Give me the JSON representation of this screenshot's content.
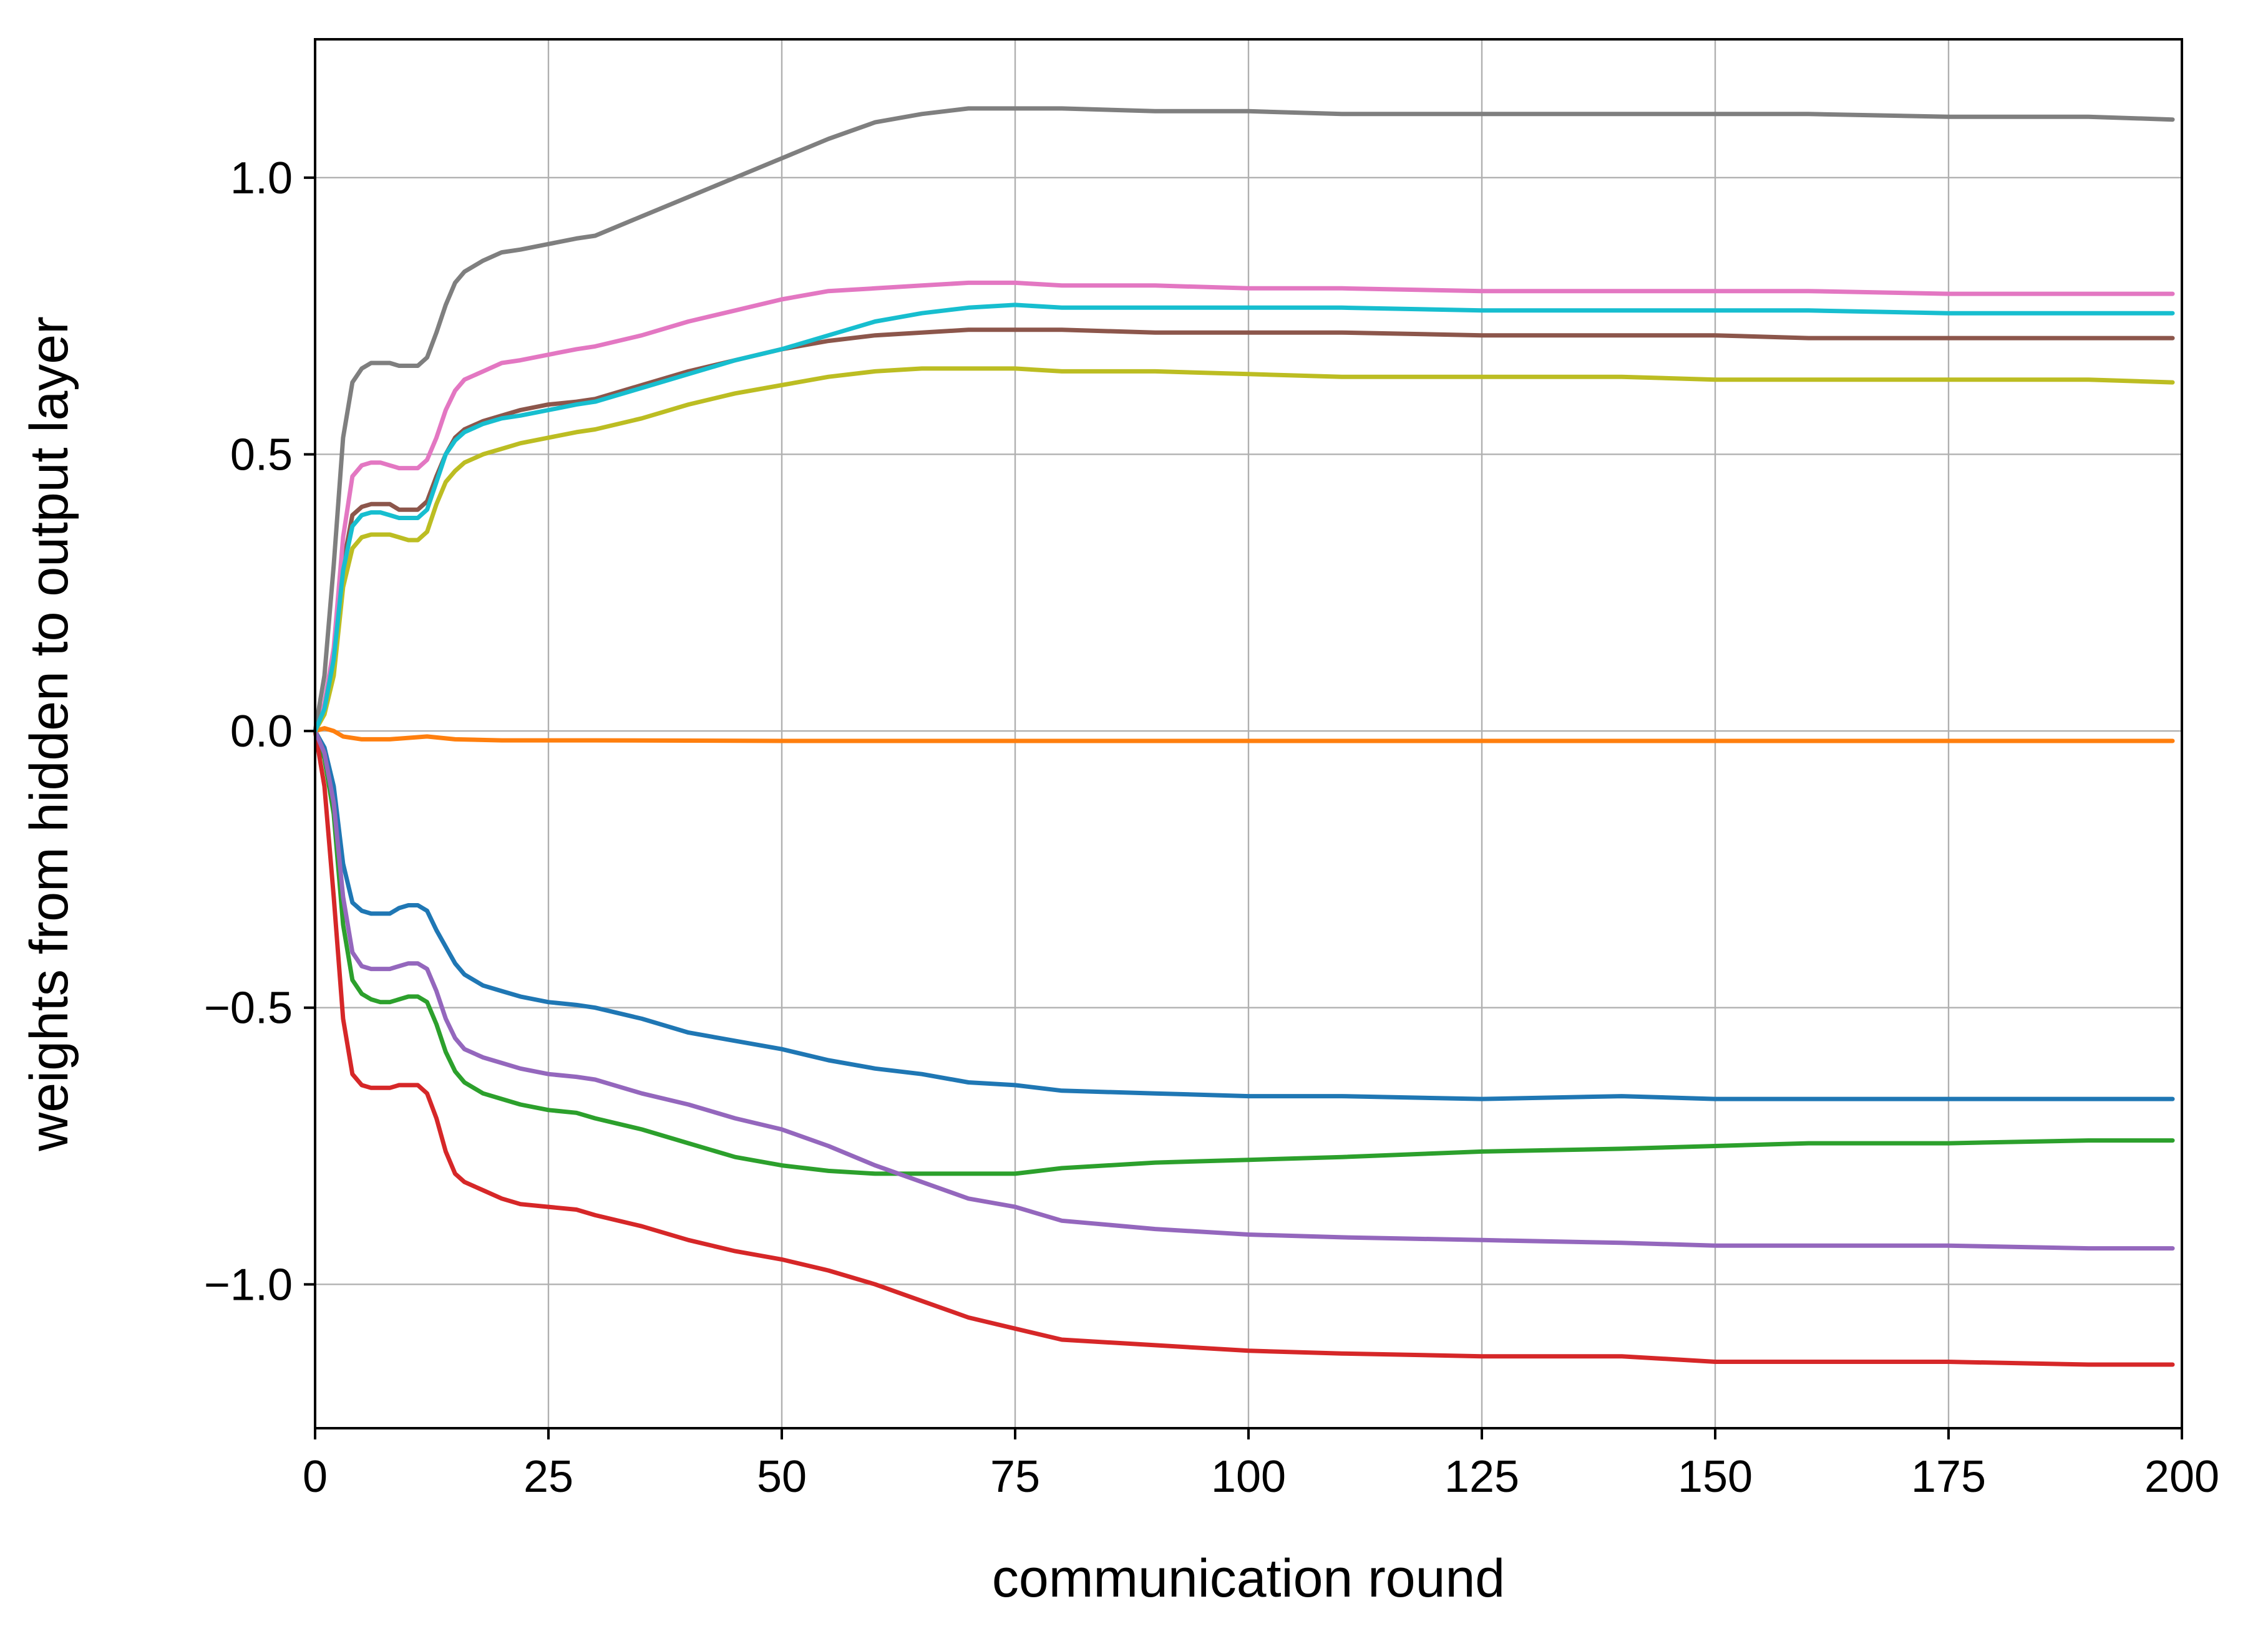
{
  "chart_data": {
    "type": "line",
    "title": "",
    "xlabel": "communication round",
    "ylabel": "weights from hidden to output layer",
    "xlim": [
      0,
      200
    ],
    "ylim": [
      -1.26,
      1.25
    ],
    "xticks": [
      0,
      25,
      50,
      75,
      100,
      125,
      150,
      175,
      200
    ],
    "xtick_labels": [
      "0",
      "25",
      "50",
      "75",
      "100",
      "125",
      "150",
      "175",
      "200"
    ],
    "yticks": [
      -1.0,
      -0.5,
      0.0,
      0.5,
      1.0
    ],
    "ytick_labels": [
      "−1.0",
      "−0.5",
      "0.0",
      "0.5",
      "1.0"
    ],
    "grid": true,
    "legend": "none",
    "series": [
      {
        "color": "#1f77b4",
        "x": [
          0,
          1,
          2,
          3,
          4,
          5,
          6,
          7,
          8,
          9,
          10,
          11,
          12,
          13,
          14,
          15,
          16,
          18,
          20,
          22,
          25,
          28,
          30,
          35,
          40,
          45,
          50,
          55,
          60,
          65,
          70,
          75,
          80,
          90,
          100,
          110,
          125,
          140,
          150,
          160,
          175,
          190,
          199
        ],
        "y": [
          0,
          -0.03,
          -0.1,
          -0.24,
          -0.31,
          -0.325,
          -0.33,
          -0.33,
          -0.33,
          -0.32,
          -0.315,
          -0.315,
          -0.325,
          -0.36,
          -0.39,
          -0.42,
          -0.44,
          -0.46,
          -0.47,
          -0.48,
          -0.49,
          -0.495,
          -0.5,
          -0.52,
          -0.545,
          -0.56,
          -0.575,
          -0.595,
          -0.61,
          -0.62,
          -0.635,
          -0.64,
          -0.65,
          -0.655,
          -0.66,
          -0.66,
          -0.665,
          -0.66,
          -0.665,
          -0.665,
          -0.665,
          -0.665,
          -0.665
        ]
      },
      {
        "color": "#ff7f0e",
        "x": [
          0,
          1,
          2,
          3,
          5,
          8,
          12,
          15,
          20,
          30,
          50,
          75,
          100,
          125,
          150,
          175,
          199
        ],
        "y": [
          0,
          0.005,
          0,
          -0.01,
          -0.015,
          -0.015,
          -0.01,
          -0.015,
          -0.017,
          -0.017,
          -0.018,
          -0.018,
          -0.018,
          -0.018,
          -0.018,
          -0.018,
          -0.018
        ]
      },
      {
        "color": "#2ca02c",
        "x": [
          0,
          1,
          2,
          3,
          4,
          5,
          6,
          7,
          8,
          9,
          10,
          11,
          12,
          13,
          14,
          15,
          16,
          18,
          20,
          22,
          25,
          28,
          30,
          35,
          40,
          45,
          50,
          55,
          60,
          65,
          70,
          75,
          80,
          90,
          100,
          110,
          125,
          140,
          150,
          160,
          175,
          190,
          199
        ],
        "y": [
          0,
          -0.05,
          -0.15,
          -0.35,
          -0.45,
          -0.475,
          -0.485,
          -0.49,
          -0.49,
          -0.485,
          -0.48,
          -0.48,
          -0.49,
          -0.53,
          -0.58,
          -0.615,
          -0.635,
          -0.655,
          -0.665,
          -0.675,
          -0.685,
          -0.69,
          -0.7,
          -0.72,
          -0.745,
          -0.77,
          -0.785,
          -0.795,
          -0.8,
          -0.8,
          -0.8,
          -0.8,
          -0.79,
          -0.78,
          -0.775,
          -0.77,
          -0.76,
          -0.755,
          -0.75,
          -0.745,
          -0.745,
          -0.74,
          -0.74
        ]
      },
      {
        "color": "#d62728",
        "x": [
          0,
          1,
          2,
          3,
          4,
          5,
          6,
          7,
          8,
          9,
          10,
          11,
          12,
          13,
          14,
          15,
          16,
          18,
          20,
          22,
          25,
          28,
          30,
          35,
          40,
          45,
          50,
          55,
          60,
          65,
          70,
          75,
          80,
          90,
          100,
          110,
          125,
          140,
          150,
          160,
          175,
          190,
          199
        ],
        "y": [
          0,
          -0.1,
          -0.3,
          -0.52,
          -0.62,
          -0.64,
          -0.645,
          -0.645,
          -0.645,
          -0.64,
          -0.64,
          -0.64,
          -0.655,
          -0.7,
          -0.76,
          -0.8,
          -0.815,
          -0.83,
          -0.845,
          -0.855,
          -0.86,
          -0.865,
          -0.875,
          -0.895,
          -0.92,
          -0.94,
          -0.955,
          -0.975,
          -1.0,
          -1.03,
          -1.06,
          -1.08,
          -1.1,
          -1.11,
          -1.12,
          -1.125,
          -1.13,
          -1.13,
          -1.14,
          -1.14,
          -1.14,
          -1.145,
          -1.145
        ]
      },
      {
        "color": "#9467bd",
        "x": [
          0,
          1,
          2,
          3,
          4,
          5,
          6,
          7,
          8,
          9,
          10,
          11,
          12,
          13,
          14,
          15,
          16,
          18,
          20,
          22,
          25,
          28,
          30,
          35,
          40,
          45,
          50,
          55,
          60,
          65,
          70,
          75,
          80,
          90,
          100,
          110,
          125,
          140,
          150,
          160,
          175,
          190,
          199
        ],
        "y": [
          0,
          -0.04,
          -0.13,
          -0.3,
          -0.4,
          -0.425,
          -0.43,
          -0.43,
          -0.43,
          -0.425,
          -0.42,
          -0.42,
          -0.43,
          -0.47,
          -0.52,
          -0.555,
          -0.575,
          -0.59,
          -0.6,
          -0.61,
          -0.62,
          -0.625,
          -0.63,
          -0.655,
          -0.675,
          -0.7,
          -0.72,
          -0.75,
          -0.785,
          -0.815,
          -0.845,
          -0.86,
          -0.885,
          -0.9,
          -0.91,
          -0.915,
          -0.92,
          -0.925,
          -0.93,
          -0.93,
          -0.93,
          -0.935,
          -0.935
        ]
      },
      {
        "color": "#8c564b",
        "x": [
          0,
          1,
          2,
          3,
          4,
          5,
          6,
          7,
          8,
          9,
          10,
          11,
          12,
          13,
          14,
          15,
          16,
          18,
          20,
          22,
          25,
          28,
          30,
          35,
          40,
          45,
          50,
          55,
          60,
          65,
          70,
          75,
          80,
          90,
          100,
          110,
          125,
          140,
          150,
          160,
          175,
          190,
          199
        ],
        "y": [
          0,
          0.04,
          0.13,
          0.3,
          0.39,
          0.405,
          0.41,
          0.41,
          0.41,
          0.4,
          0.4,
          0.4,
          0.415,
          0.46,
          0.5,
          0.53,
          0.545,
          0.56,
          0.57,
          0.58,
          0.59,
          0.595,
          0.6,
          0.625,
          0.65,
          0.67,
          0.69,
          0.705,
          0.715,
          0.72,
          0.725,
          0.725,
          0.725,
          0.72,
          0.72,
          0.72,
          0.715,
          0.715,
          0.715,
          0.71,
          0.71,
          0.71,
          0.71
        ]
      },
      {
        "color": "#e377c2",
        "x": [
          0,
          1,
          2,
          3,
          4,
          5,
          6,
          7,
          8,
          9,
          10,
          11,
          12,
          13,
          14,
          15,
          16,
          18,
          20,
          22,
          25,
          28,
          30,
          35,
          40,
          45,
          50,
          55,
          60,
          65,
          70,
          75,
          80,
          90,
          100,
          110,
          125,
          140,
          150,
          160,
          175,
          190,
          199
        ],
        "y": [
          0,
          0.05,
          0.15,
          0.35,
          0.46,
          0.48,
          0.485,
          0.485,
          0.48,
          0.475,
          0.475,
          0.475,
          0.49,
          0.53,
          0.58,
          0.615,
          0.635,
          0.65,
          0.665,
          0.67,
          0.68,
          0.69,
          0.695,
          0.715,
          0.74,
          0.76,
          0.78,
          0.795,
          0.8,
          0.805,
          0.81,
          0.81,
          0.805,
          0.805,
          0.8,
          0.8,
          0.795,
          0.795,
          0.795,
          0.795,
          0.79,
          0.79,
          0.79
        ]
      },
      {
        "color": "#7f7f7f",
        "x": [
          0,
          1,
          2,
          3,
          4,
          5,
          6,
          7,
          8,
          9,
          10,
          11,
          12,
          13,
          14,
          15,
          16,
          18,
          20,
          22,
          25,
          28,
          30,
          35,
          40,
          45,
          50,
          55,
          60,
          65,
          70,
          75,
          80,
          90,
          100,
          110,
          125,
          140,
          150,
          160,
          175,
          190,
          199
        ],
        "y": [
          0,
          0.1,
          0.3,
          0.53,
          0.63,
          0.655,
          0.665,
          0.665,
          0.665,
          0.66,
          0.66,
          0.66,
          0.675,
          0.72,
          0.77,
          0.81,
          0.83,
          0.85,
          0.865,
          0.87,
          0.88,
          0.89,
          0.895,
          0.93,
          0.965,
          1.0,
          1.035,
          1.07,
          1.1,
          1.115,
          1.125,
          1.125,
          1.125,
          1.12,
          1.12,
          1.115,
          1.115,
          1.115,
          1.115,
          1.115,
          1.11,
          1.11,
          1.105
        ]
      },
      {
        "color": "#bcbd22",
        "x": [
          0,
          1,
          2,
          3,
          4,
          5,
          6,
          7,
          8,
          9,
          10,
          11,
          12,
          13,
          14,
          15,
          16,
          18,
          20,
          22,
          25,
          28,
          30,
          35,
          40,
          45,
          50,
          55,
          60,
          65,
          70,
          75,
          80,
          90,
          100,
          110,
          125,
          140,
          150,
          160,
          175,
          190,
          199
        ],
        "y": [
          0,
          0.03,
          0.1,
          0.26,
          0.33,
          0.35,
          0.355,
          0.355,
          0.355,
          0.35,
          0.345,
          0.345,
          0.36,
          0.41,
          0.45,
          0.47,
          0.485,
          0.5,
          0.51,
          0.52,
          0.53,
          0.54,
          0.545,
          0.565,
          0.59,
          0.61,
          0.625,
          0.64,
          0.65,
          0.655,
          0.655,
          0.655,
          0.65,
          0.65,
          0.645,
          0.64,
          0.64,
          0.64,
          0.635,
          0.635,
          0.635,
          0.635,
          0.63
        ]
      },
      {
        "color": "#17becf",
        "x": [
          0,
          1,
          2,
          3,
          4,
          5,
          6,
          7,
          8,
          9,
          10,
          11,
          12,
          13,
          14,
          15,
          16,
          18,
          20,
          22,
          25,
          28,
          30,
          35,
          40,
          45,
          50,
          55,
          60,
          65,
          70,
          75,
          80,
          90,
          100,
          110,
          125,
          140,
          150,
          160,
          175,
          190,
          199
        ],
        "y": [
          0,
          0.04,
          0.13,
          0.29,
          0.37,
          0.39,
          0.395,
          0.395,
          0.39,
          0.385,
          0.385,
          0.385,
          0.4,
          0.45,
          0.5,
          0.525,
          0.54,
          0.555,
          0.565,
          0.57,
          0.58,
          0.59,
          0.595,
          0.62,
          0.645,
          0.67,
          0.69,
          0.715,
          0.74,
          0.755,
          0.765,
          0.77,
          0.765,
          0.765,
          0.765,
          0.765,
          0.76,
          0.76,
          0.76,
          0.76,
          0.755,
          0.755,
          0.755
        ]
      }
    ]
  }
}
